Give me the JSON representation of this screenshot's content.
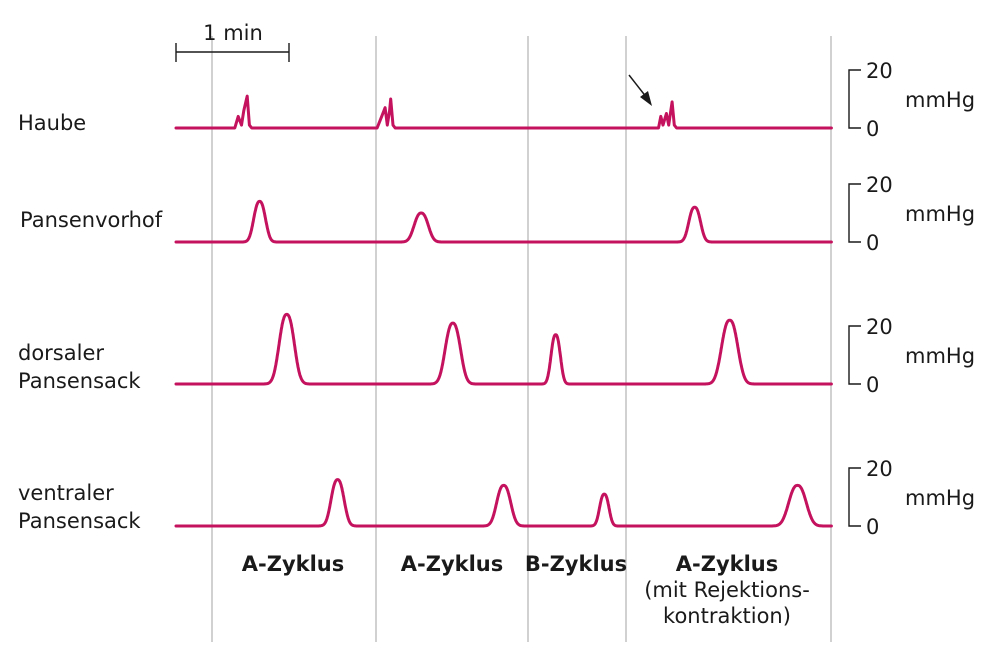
{
  "chart_data": {
    "type": "line",
    "time_scale": {
      "label": "1 min"
    },
    "cycles": [
      {
        "id": "a1",
        "lines": [
          "A-Zyklus"
        ]
      },
      {
        "id": "a2",
        "lines": [
          "A-Zyklus"
        ]
      },
      {
        "id": "b1",
        "lines": [
          "B-Zyklus"
        ]
      },
      {
        "id": "a3",
        "lines": [
          "A-Zyklus",
          "(mit Rejektions-",
          "kontraktion)"
        ]
      }
    ],
    "y_scale": {
      "max_label": "20",
      "min_label": "0",
      "unit": "mmHg",
      "range": [
        0,
        20
      ]
    },
    "series": [
      {
        "id": "haube",
        "label_lines": [
          "Haube"
        ],
        "points_min": [
          [
            0,
            0
          ],
          [
            0.52,
            0
          ],
          [
            0.55,
            4
          ],
          [
            0.58,
            1
          ],
          [
            0.6,
            6
          ],
          [
            0.63,
            11
          ],
          [
            0.65,
            1
          ],
          [
            0.67,
            0
          ],
          [
            1.78,
            0
          ],
          [
            1.82,
            4
          ],
          [
            1.85,
            7
          ],
          [
            1.87,
            1
          ],
          [
            1.89,
            6
          ],
          [
            1.9,
            10
          ],
          [
            1.92,
            1
          ],
          [
            1.94,
            0
          ],
          [
            4.27,
            0
          ],
          [
            4.29,
            4
          ],
          [
            4.31,
            1
          ],
          [
            4.34,
            5
          ],
          [
            4.36,
            1
          ],
          [
            4.39,
            9
          ],
          [
            4.41,
            1
          ],
          [
            4.43,
            0
          ],
          [
            5.8,
            0
          ]
        ]
      },
      {
        "id": "pansenvorhof",
        "label_lines": [
          "Pansenvorhof"
        ],
        "peaks": [
          {
            "t": 0.74,
            "amp": 14,
            "w": 0.05
          },
          {
            "t": 2.17,
            "amp": 10,
            "w": 0.06
          },
          {
            "t": 4.59,
            "amp": 12,
            "w": 0.05
          }
        ],
        "t_end": 5.8
      },
      {
        "id": "dorsaler",
        "label_lines": [
          "dorsaler",
          "Pansensack"
        ],
        "peaks": [
          {
            "t": 0.98,
            "amp": 24,
            "w": 0.065
          },
          {
            "t": 2.45,
            "amp": 21,
            "w": 0.065
          },
          {
            "t": 3.36,
            "amp": 17,
            "w": 0.04
          },
          {
            "t": 4.9,
            "amp": 22,
            "w": 0.07
          }
        ],
        "t_end": 5.8
      },
      {
        "id": "ventraler",
        "label_lines": [
          "ventraler",
          "Pansensack"
        ],
        "peaks": [
          {
            "t": 1.43,
            "amp": 16,
            "w": 0.055
          },
          {
            "t": 2.9,
            "amp": 14,
            "w": 0.06
          },
          {
            "t": 3.79,
            "amp": 11,
            "w": 0.04
          },
          {
            "t": 5.5,
            "amp": 14,
            "w": 0.075
          }
        ],
        "t_end": 5.8
      }
    ]
  }
}
